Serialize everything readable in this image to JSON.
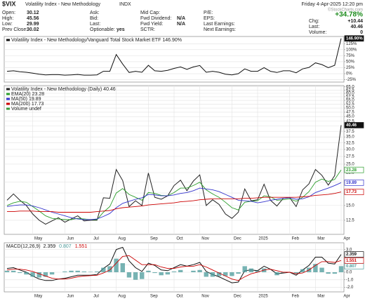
{
  "header": {
    "symbol": "$VIX",
    "name": "Volatility Index - New Methodology",
    "exchange": "INDX",
    "date": "Friday 4-Apr-2025 12:20 pm",
    "change_pct": "+34.78%",
    "watermark": "©StockCharts.com",
    "columns": [
      [
        {
          "label": "Open:",
          "value": "30.12"
        },
        {
          "label": "High:",
          "value": "45.56"
        },
        {
          "label": "Low:",
          "value": "29.99"
        },
        {
          "label": "Prev Close:",
          "value": "30.02"
        }
      ],
      [
        {
          "label": "Ask:"
        },
        {
          "label": "Bid:"
        },
        {
          "label": "Last:"
        },
        {
          "label": "Optionable:",
          "value": "yes"
        }
      ],
      [
        {
          "label": "Mid Cap:"
        },
        {
          "label": "Fwd Dividend:",
          "value": "N/A"
        },
        {
          "label": "Fwd Yield:",
          "value": "N/A"
        },
        {
          "label": "SCTR:"
        }
      ],
      [
        {
          "label": "P/E:"
        },
        {
          "label": "EPS:"
        },
        {
          "label": "Last Earnings:"
        },
        {
          "label": "Next Earnings:"
        }
      ]
    ],
    "right": [
      {
        "label": "Chg:",
        "value": "+10.44"
      },
      {
        "label": "Last:",
        "value": "40.46"
      },
      {
        "label": "Volume:",
        "value": "0"
      }
    ]
  },
  "chart_data": [
    {
      "type": "line",
      "ylim": [
        -35,
        155
      ],
      "yticks": [
        {
          "value": 125,
          "label": "125%"
        },
        {
          "value": 100,
          "label": "100%"
        },
        {
          "value": 75,
          "label": "75%"
        },
        {
          "value": 50,
          "label": "50%"
        },
        {
          "value": 25,
          "label": "25%"
        },
        {
          "value": 0,
          "label": "0%"
        },
        {
          "value": -25,
          "label": "-25%"
        }
      ],
      "grid": true,
      "series": [
        {
          "name": "Volatility Index - New Methodology/Vanguard Total Stock Market ETF",
          "color": "#111111",
          "last_label": "146.90%",
          "values": [
            10,
            12,
            8,
            6,
            2,
            -2,
            -5,
            -4,
            -4,
            -6,
            -5,
            -3,
            -6,
            -6,
            -5,
            10,
            10,
            80,
            40,
            5,
            10,
            6,
            35,
            12,
            10,
            14,
            22,
            28,
            18,
            28,
            34,
            6,
            10,
            6,
            -2,
            -5,
            0,
            20,
            10,
            10,
            25,
            10,
            5,
            12,
            12,
            4,
            20,
            26,
            45,
            38,
            25,
            35,
            146.9
          ]
        }
      ]
    },
    {
      "type": "line",
      "log_scale": true,
      "ylim": [
        10.5,
        66
      ],
      "grid": true,
      "legend_extra": "Volume undef",
      "yticks": [
        12.5,
        {
          "value": 15,
          "label": "15.0"
        },
        17.5,
        {
          "value": 20,
          "label": "20.0"
        },
        22.5,
        {
          "value": 25,
          "label": "25.0"
        },
        27.5,
        {
          "value": 30,
          "label": "30.0"
        },
        32.5,
        {
          "value": 35,
          "label": "35.0"
        },
        37.5,
        {
          "value": 40,
          "label": "40.0"
        },
        42.5,
        {
          "value": 45,
          "label": "45.0"
        },
        47.5,
        {
          "value": 50,
          "label": "50.0"
        },
        52.5,
        {
          "value": 55,
          "label": "55.0"
        },
        57.5,
        {
          "value": 60,
          "label": "60.0"
        },
        62.5,
        {
          "value": 65,
          "label": "65.0"
        }
      ],
      "categories": [
        null,
        null,
        null,
        null,
        "May",
        null,
        null,
        null,
        null,
        "Jun",
        null,
        null,
        null,
        "Jul",
        null,
        null,
        null,
        "Aug",
        null,
        null,
        null,
        null,
        "Sep",
        null,
        null,
        null,
        "Oct",
        null,
        null,
        null,
        "Nov",
        null,
        null,
        null,
        null,
        "Dec",
        null,
        null,
        null,
        "2025",
        null,
        null,
        null,
        null,
        "Feb",
        null,
        null,
        null,
        "Mar",
        null,
        null,
        null,
        "Apr"
      ],
      "series": [
        {
          "name": "Volatility Index - New Methodology (Daily)",
          "color": "#222222",
          "values": [
            16,
            17.3,
            16,
            15,
            13.5,
            12.5,
            11.9,
            12.4,
            12.9,
            12.2,
            12.7,
            13.2,
            12.4,
            12.5,
            12.5,
            16.5,
            16.4,
            23.4,
            20.4,
            14.8,
            15.9,
            15,
            22.4,
            16.6,
            16.2,
            16.9,
            19.2,
            20.5,
            18,
            20.3,
            21.9,
            15,
            16.1,
            15.2,
            13.5,
            12.8,
            13.8,
            18.4,
            15.9,
            16.1,
            19.5,
            16,
            14.9,
            16.4,
            16.5,
            14.8,
            18.2,
            19.6,
            23.4,
            21.8,
            19.3,
            21.7,
            40.46
          ]
        },
        {
          "name": "EMA(20)",
          "color": "#2a9d2a",
          "values": [
            15,
            15.5,
            15.8,
            15.6,
            14.8,
            14,
            13.2,
            12.8,
            12.7,
            12.6,
            12.6,
            12.8,
            12.7,
            12.6,
            12.6,
            13.8,
            14.8,
            17.5,
            18.5,
            17.2,
            16.6,
            16,
            17.6,
            17.4,
            17,
            16.9,
            17.6,
            18.6,
            18.6,
            19.2,
            20,
            18.2,
            17.3,
            16.6,
            15.6,
            14.6,
            14.2,
            15.6,
            15.8,
            15.9,
            16.9,
            16.7,
            16,
            16.1,
            16.3,
            15.8,
            16.6,
            17.8,
            20,
            20.8,
            20.2,
            20.7,
            23.28
          ]
        },
        {
          "name": "MA(50)",
          "color": "#3333cc",
          "values": [
            14.8,
            15,
            15.1,
            15.1,
            14.9,
            14.6,
            14.2,
            13.8,
            13.5,
            13.2,
            12.9,
            12.7,
            12.6,
            12.6,
            12.7,
            13.1,
            13.6,
            14.6,
            15.4,
            15.8,
            16.2,
            16.5,
            17.2,
            17.1,
            16.9,
            16.9,
            17.1,
            17.4,
            17.6,
            18,
            18.6,
            18.4,
            18.2,
            17.8,
            17.2,
            16.6,
            16,
            15.9,
            15.8,
            15.5,
            15.7,
            16,
            16.2,
            16.4,
            16.5,
            16.2,
            16.3,
            16.7,
            17.6,
            18.1,
            18.6,
            19.2,
            19.89
          ]
        },
        {
          "name": "MA(200)",
          "color": "#cc0000",
          "values": [
            13.9,
            13.9,
            14,
            14,
            14,
            13.9,
            13.9,
            13.9,
            13.8,
            13.8,
            13.8,
            13.8,
            13.8,
            13.8,
            13.9,
            14,
            14.1,
            14.4,
            14.6,
            14.7,
            14.8,
            14.9,
            15.1,
            15.2,
            15.3,
            15.4,
            15.5,
            15.7,
            15.8,
            15.9,
            16.1,
            16.2,
            16.3,
            16.3,
            16.3,
            16.3,
            16.3,
            16.4,
            16.4,
            16.5,
            16.6,
            16.6,
            16.6,
            16.6,
            16.6,
            16.6,
            16.7,
            16.8,
            17,
            17.1,
            17.2,
            17.4,
            17.73
          ]
        }
      ]
    },
    {
      "type": "line",
      "ylim": [
        -2.6,
        3.9
      ],
      "grid": true,
      "yticks": [
        {
          "value": 3,
          "label": "3.0"
        },
        {
          "value": 2,
          "label": "2.0"
        },
        {
          "value": 1,
          "label": "1.0"
        },
        {
          "value": 0,
          "label": "0.0"
        },
        {
          "value": -1,
          "label": "-1.0"
        },
        {
          "value": -2,
          "label": "-2.0"
        }
      ],
      "categories": [
        null,
        null,
        null,
        null,
        "May",
        null,
        null,
        null,
        null,
        "Jun",
        null,
        null,
        null,
        "Jul",
        null,
        null,
        null,
        "Aug",
        null,
        null,
        null,
        null,
        "Sep",
        null,
        null,
        null,
        "Oct",
        null,
        null,
        null,
        "Nov",
        null,
        null,
        null,
        null,
        "Dec",
        null,
        null,
        null,
        "2025",
        null,
        null,
        null,
        null,
        "Feb",
        null,
        null,
        null,
        "Mar",
        null,
        null,
        null,
        "Apr"
      ],
      "series": [
        {
          "name": "MACD(12,26,9)",
          "color": "#111111",
          "values": [
            0.5,
            0.6,
            0.3,
            0,
            -0.5,
            -0.9,
            -1.1,
            -1.1,
            -0.9,
            -0.8,
            -0.6,
            -0.4,
            -0.4,
            -0.4,
            -0.3,
            0.5,
            1.1,
            3,
            3.3,
            1.5,
            0.6,
            0.1,
            1.2,
            0.9,
            0.3,
            0.2,
            0.6,
            1,
            0.8,
            1,
            1.3,
            0.1,
            -0.3,
            -0.6,
            -1,
            -1.4,
            -1.3,
            0.2,
            0.3,
            0.2,
            0.8,
            0.4,
            -0.2,
            -0.1,
            0,
            -0.4,
            0.3,
            0.9,
            2,
            2,
            1.2,
            1.1,
            2.359
          ]
        },
        {
          "color": "#4a9a9a",
          "mark": "bar",
          "values": [
            0.2,
            0.2,
            -0.1,
            -0.3,
            -0.6,
            -0.7,
            -0.6,
            -0.3,
            0,
            0.1,
            0.2,
            0.2,
            0.1,
            0.05,
            0.1,
            0.6,
            0.8,
            1.8,
            1.2,
            -0.7,
            -1,
            -0.9,
            0.2,
            -0.1,
            -0.4,
            -0.3,
            0.1,
            0.3,
            0,
            0.2,
            0.3,
            -0.6,
            -0.6,
            -0.5,
            -0.5,
            -0.5,
            -0.2,
            0.8,
            0.5,
            0.2,
            0.5,
            0,
            -0.4,
            -0.1,
            0,
            -0.2,
            0.4,
            0.6,
            1.1,
            0.6,
            -0.2,
            -0.2,
            0.807
          ]
        },
        {
          "color": "#cc0000",
          "values": [
            0.3,
            0.4,
            0.4,
            0.3,
            0.1,
            -0.2,
            -0.5,
            -0.8,
            -0.9,
            -0.9,
            -0.8,
            -0.6,
            -0.5,
            -0.45,
            -0.4,
            -0.1,
            0.3,
            1.2,
            2.1,
            2.2,
            1.6,
            1,
            1,
            1,
            0.7,
            0.5,
            0.5,
            0.7,
            0.8,
            0.8,
            1,
            0.7,
            0.3,
            -0.1,
            -0.5,
            -0.9,
            -1.1,
            -0.6,
            -0.2,
            0,
            0.3,
            0.4,
            0.2,
            0,
            0,
            -0.2,
            -0.1,
            0.3,
            0.9,
            1.4,
            1.4,
            1.3,
            1.551
          ]
        }
      ]
    }
  ]
}
